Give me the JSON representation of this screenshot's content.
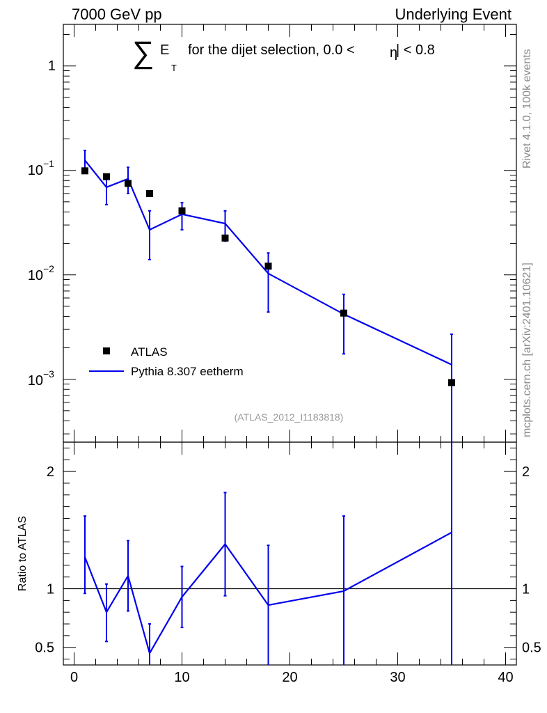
{
  "header": {
    "left": "7000 GeV pp",
    "right": "Underlying Event"
  },
  "title": {
    "sum_symbol": "∑",
    "e": "E",
    "sub_t": "T",
    "rest_before_eta": "for the dijet selection, 0.0 <",
    "eta_symbol": "η",
    "rest_after_eta": "| < 0.8"
  },
  "side_labels": {
    "rivet": "Rivet 4.1.0,  100k events",
    "mcplots": "mcplots.cern.ch [arXiv:2401.10621]"
  },
  "analysis_id": "(ATLAS_2012_I1183818)",
  "legend": {
    "data_label": "ATLAS",
    "mc_label": "Pythia 8.307 eetherm"
  },
  "colors": {
    "data": "#000000",
    "mc": "#0000ee",
    "axis": "#000000",
    "side_text": "#888888"
  },
  "chart_data": [
    {
      "type": "scatter",
      "panel": "main",
      "yscale": "log",
      "xlim": [
        -1,
        41
      ],
      "ylim": [
        0.00025,
        2.5
      ],
      "y_tick_labels": [
        {
          "value": 1,
          "base": "1",
          "exp": ""
        },
        {
          "value": 0.1,
          "base": "10",
          "exp": "−1"
        },
        {
          "value": 0.01,
          "base": "10",
          "exp": "−2"
        },
        {
          "value": 0.001,
          "base": "10",
          "exp": "−3"
        }
      ],
      "series": [
        {
          "name": "ATLAS",
          "style": "markers",
          "x": [
            1,
            3,
            5,
            7,
            10,
            14,
            18,
            25,
            35
          ],
          "values": [
            0.099,
            0.087,
            0.075,
            0.06,
            0.041,
            0.0225,
            0.0121,
            0.0043,
            0.00093
          ]
        },
        {
          "name": "Pythia 8.307 eetherm",
          "style": "line",
          "x": [
            1,
            3,
            5,
            7,
            10,
            14,
            18,
            25,
            35
          ],
          "values": [
            0.125,
            0.069,
            0.083,
            0.027,
            0.038,
            0.031,
            0.0103,
            0.0042,
            0.00138
          ],
          "err_low": [
            0.095,
            0.047,
            0.06,
            0.014,
            0.027,
            0.021,
            0.0044,
            0.00175,
            0.0001
          ],
          "err_high": [
            0.155,
            0.092,
            0.107,
            0.041,
            0.049,
            0.041,
            0.0162,
            0.0065,
            0.0027
          ]
        }
      ]
    },
    {
      "type": "line",
      "panel": "ratio",
      "yscale": "linear",
      "ylabel": "Ratio to ATLAS",
      "xlim": [
        -1,
        41
      ],
      "ylim": [
        0.35,
        2.25
      ],
      "x_ticks": [
        0,
        10,
        20,
        30,
        40
      ],
      "x_tick_labels": [
        "0",
        "10",
        "20",
        "30",
        "40"
      ],
      "y_ticks": [
        0.5,
        1,
        2
      ],
      "y_tick_labels": [
        "0.5",
        "1",
        "2"
      ],
      "reference_line": 1,
      "series": [
        {
          "name": "Pythia 8.307 eetherm / ATLAS",
          "x": [
            1,
            3,
            5,
            7,
            10,
            14,
            18,
            25,
            35
          ],
          "values": [
            1.27,
            0.8,
            1.11,
            0.45,
            0.93,
            1.38,
            0.86,
            0.98,
            1.48
          ],
          "err_low": [
            0.96,
            0.55,
            0.81,
            0.23,
            0.67,
            0.94,
            0.35,
            0.35,
            0.35
          ],
          "err_high": [
            1.62,
            1.04,
            1.41,
            0.7,
            1.19,
            1.82,
            1.37,
            1.62,
            2.25
          ]
        }
      ]
    }
  ]
}
